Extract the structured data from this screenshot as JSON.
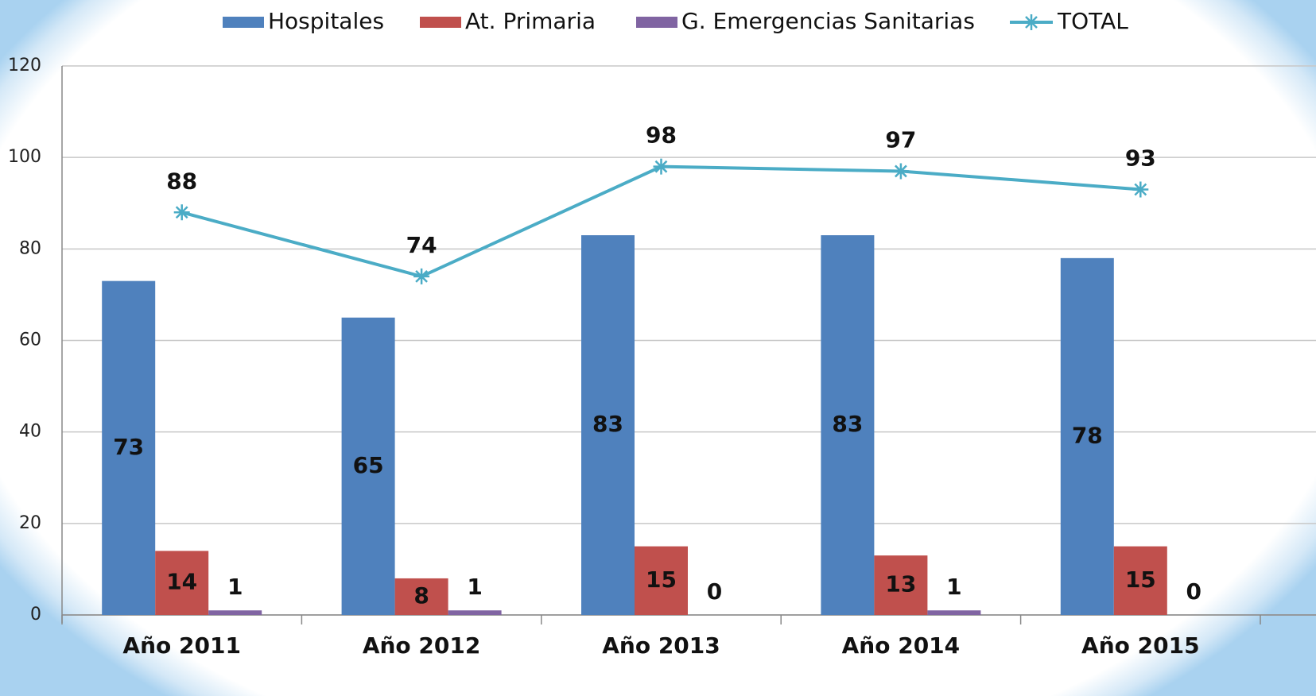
{
  "chart_data": {
    "type": "bar",
    "categories": [
      "Año 2011",
      "Año 2012",
      "Año 2013",
      "Año 2014",
      "Año 2015"
    ],
    "series": [
      {
        "name": "Hospitales",
        "color": "#4f81bd",
        "values": [
          73,
          65,
          83,
          83,
          78
        ]
      },
      {
        "name": "At. Primaria",
        "color": "#c0504d",
        "values": [
          14,
          8,
          15,
          13,
          15
        ]
      },
      {
        "name": "G. Emergencias Sanitarias",
        "color": "#8064a2",
        "values": [
          1,
          1,
          0,
          1,
          0
        ]
      },
      {
        "name": "TOTAL",
        "type": "line",
        "color": "#4bacc6",
        "values": [
          88,
          74,
          98,
          97,
          93
        ]
      }
    ],
    "ylim": [
      0,
      120
    ],
    "yticks": [
      0,
      20,
      40,
      60,
      80,
      100,
      120
    ],
    "grid": true,
    "legend": "top"
  }
}
